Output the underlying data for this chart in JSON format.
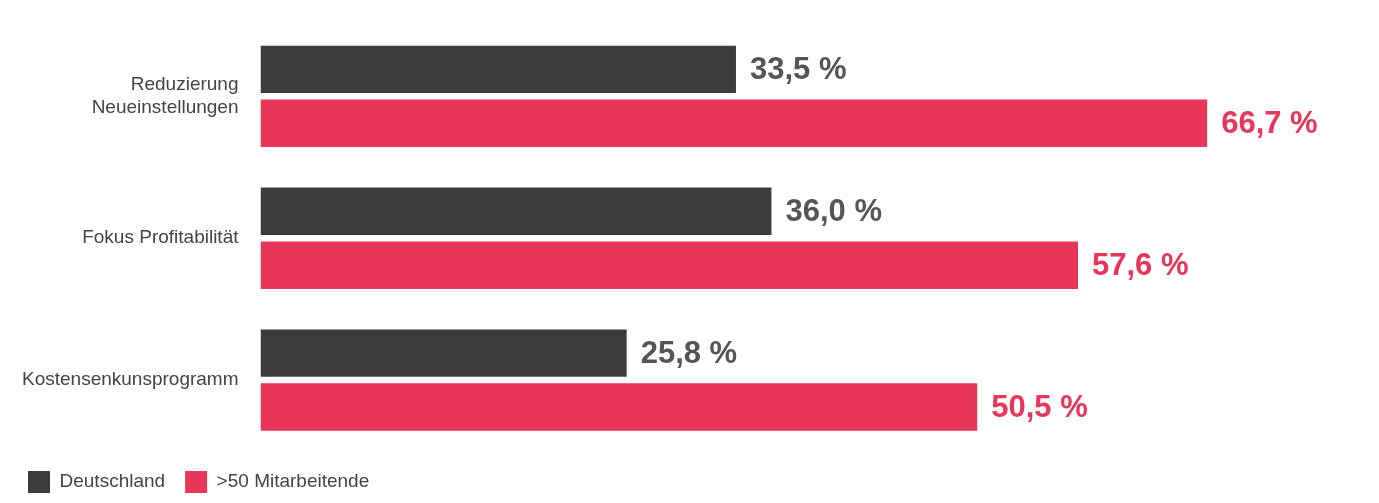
{
  "chart_data": {
    "type": "bar",
    "orientation": "horizontal",
    "categories": [
      "Reduzierung Neueinstellungen",
      "Fokus Profitabilität",
      "Kostensenkunsprogramm"
    ],
    "series": [
      {
        "name": "Deutschland",
        "color": "#3c3c3c",
        "values": [
          33.5,
          36.0,
          25.8
        ],
        "value_labels": [
          "33,5 %",
          "36,0 %",
          "25,8 %"
        ]
      },
      {
        "name": ">50 Mitarbeitende",
        "color": "#e8365a",
        "values": [
          66.7,
          57.6,
          50.5
        ],
        "value_labels": [
          "66,7 %",
          "57,6 %",
          "50,5 %"
        ]
      }
    ],
    "legend": "bottom left"
  }
}
